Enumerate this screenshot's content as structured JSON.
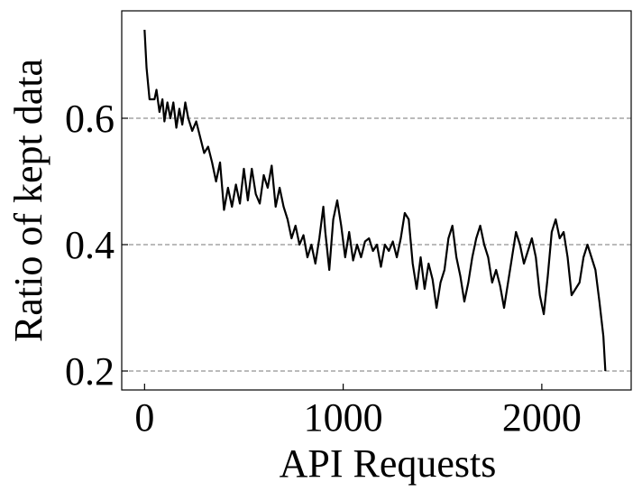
{
  "chart_data": {
    "type": "line",
    "xlabel": "API Requests",
    "ylabel": "Ratio of kept data",
    "x": [
      0,
      10,
      25,
      50,
      60,
      75,
      90,
      100,
      115,
      130,
      145,
      160,
      175,
      190,
      205,
      220,
      240,
      260,
      280,
      300,
      320,
      340,
      360,
      380,
      400,
      420,
      440,
      460,
      480,
      500,
      520,
      540,
      560,
      580,
      600,
      620,
      640,
      660,
      680,
      700,
      720,
      740,
      760,
      780,
      800,
      820,
      840,
      860,
      880,
      900,
      910,
      930,
      950,
      970,
      990,
      1010,
      1030,
      1050,
      1070,
      1090,
      1110,
      1130,
      1150,
      1170,
      1190,
      1210,
      1230,
      1250,
      1270,
      1290,
      1310,
      1330,
      1350,
      1370,
      1390,
      1410,
      1430,
      1450,
      1470,
      1490,
      1510,
      1530,
      1550,
      1570,
      1590,
      1610,
      1630,
      1650,
      1670,
      1690,
      1710,
      1730,
      1750,
      1770,
      1790,
      1810,
      1830,
      1850,
      1870,
      1890,
      1910,
      1930,
      1950,
      1970,
      1990,
      2010,
      2030,
      2050,
      2070,
      2090,
      2110,
      2130,
      2150,
      2170,
      2190,
      2210,
      2230,
      2250,
      2270,
      2290,
      2310,
      2320
    ],
    "series": [
      {
        "color": "#000000",
        "values": [
          0.74,
          0.68,
          0.63,
          0.63,
          0.645,
          0.61,
          0.63,
          0.595,
          0.625,
          0.6,
          0.625,
          0.585,
          0.615,
          0.59,
          0.625,
          0.6,
          0.58,
          0.595,
          0.57,
          0.545,
          0.555,
          0.53,
          0.5,
          0.53,
          0.455,
          0.49,
          0.46,
          0.495,
          0.465,
          0.52,
          0.47,
          0.52,
          0.48,
          0.465,
          0.51,
          0.49,
          0.525,
          0.46,
          0.49,
          0.46,
          0.44,
          0.41,
          0.43,
          0.4,
          0.415,
          0.38,
          0.4,
          0.37,
          0.41,
          0.46,
          0.42,
          0.36,
          0.44,
          0.47,
          0.43,
          0.38,
          0.42,
          0.375,
          0.4,
          0.38,
          0.405,
          0.41,
          0.39,
          0.4,
          0.365,
          0.4,
          0.39,
          0.405,
          0.38,
          0.41,
          0.45,
          0.44,
          0.37,
          0.33,
          0.38,
          0.33,
          0.37,
          0.345,
          0.3,
          0.34,
          0.36,
          0.41,
          0.43,
          0.38,
          0.35,
          0.31,
          0.34,
          0.38,
          0.41,
          0.43,
          0.4,
          0.38,
          0.34,
          0.36,
          0.335,
          0.3,
          0.34,
          0.38,
          0.42,
          0.4,
          0.37,
          0.39,
          0.41,
          0.38,
          0.32,
          0.29,
          0.35,
          0.42,
          0.44,
          0.41,
          0.42,
          0.38,
          0.32,
          0.33,
          0.34,
          0.38,
          0.4,
          0.38,
          0.36,
          0.31,
          0.255,
          0.2
        ]
      }
    ],
    "xlim": [
      -115,
      2450
    ],
    "xticks": [
      0,
      1000,
      2000
    ],
    "ylim": [
      0.17,
      0.77
    ],
    "yticks": [
      0.2,
      0.4,
      0.6
    ],
    "grid": true
  }
}
